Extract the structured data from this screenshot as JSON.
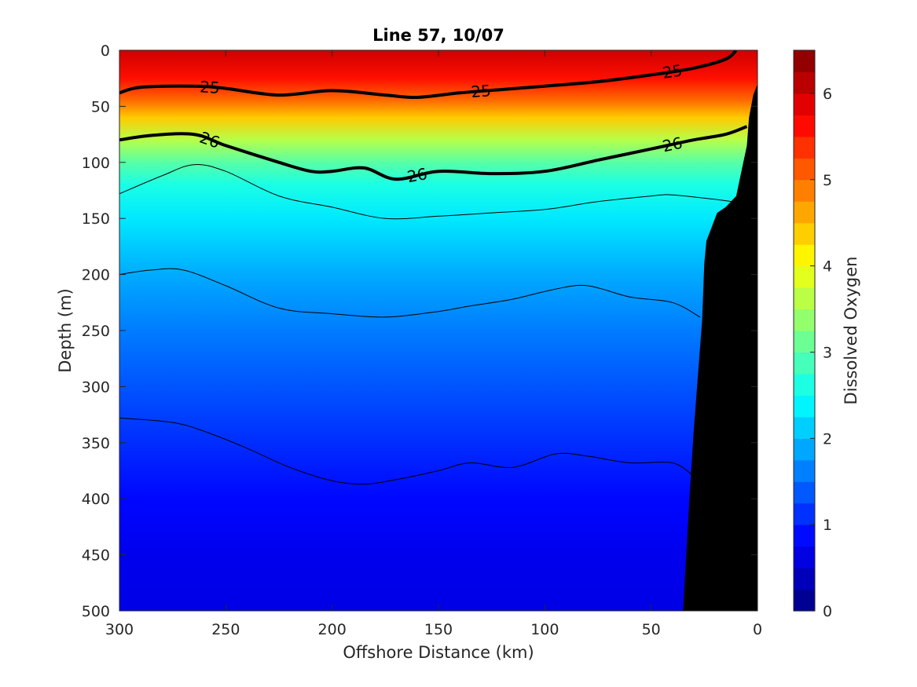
{
  "chart_data": {
    "type": "heatmap",
    "subtype": "filled-contour-section",
    "title": "Line 57, 10/07",
    "xlabel": "Offshore Distance (km)",
    "ylabel": "Depth (m)",
    "xlim": [
      300,
      0
    ],
    "x_reversed": true,
    "ylim": [
      0,
      500
    ],
    "y_reversed": true,
    "xticks": [
      "300",
      "250",
      "200",
      "150",
      "100",
      "50",
      "0"
    ],
    "yticks": [
      "0",
      "50",
      "100",
      "150",
      "200",
      "250",
      "300",
      "350",
      "400",
      "450",
      "500"
    ],
    "colorbar": {
      "label": "Dissolved Oxygen",
      "range": [
        0,
        6.5
      ],
      "ticks": [
        "0",
        "1",
        "2",
        "3",
        "4",
        "5",
        "6"
      ],
      "colormap": "jet"
    },
    "oxygen_profile_by_depth": {
      "depth": [
        0,
        25,
        45,
        60,
        80,
        100,
        120,
        150,
        200,
        250,
        300,
        350,
        400,
        450,
        500
      ],
      "oxygen": [
        6.0,
        5.6,
        5.0,
        4.4,
        3.6,
        3.0,
        2.6,
        2.3,
        1.9,
        1.6,
        1.35,
        1.1,
        0.85,
        0.7,
        0.65
      ]
    },
    "density_contours": [
      {
        "label": "25",
        "emphasized": true,
        "x": [
          300,
          290,
          265,
          250,
          225,
          200,
          175,
          160,
          140,
          120,
          100,
          75,
          50,
          30,
          15,
          10
        ],
        "depth": [
          38,
          33,
          32,
          34,
          40,
          36,
          40,
          42,
          38,
          35,
          32,
          28,
          22,
          16,
          8,
          0
        ]
      },
      {
        "label": "26",
        "emphasized": true,
        "x": [
          300,
          285,
          265,
          250,
          225,
          210,
          200,
          185,
          170,
          150,
          125,
          100,
          75,
          50,
          30,
          15,
          5
        ],
        "depth": [
          80,
          76,
          75,
          85,
          100,
          108,
          108,
          105,
          115,
          108,
          110,
          108,
          98,
          88,
          80,
          75,
          68
        ]
      },
      {
        "label": "",
        "emphasized": false,
        "x": [
          300,
          280,
          265,
          250,
          225,
          200,
          175,
          150,
          125,
          100,
          75,
          50,
          40,
          20,
          12
        ],
        "depth": [
          128,
          112,
          102,
          108,
          130,
          140,
          150,
          148,
          145,
          142,
          135,
          130,
          129,
          133,
          135
        ]
      },
      {
        "label": "",
        "emphasized": false,
        "x": [
          300,
          285,
          270,
          250,
          225,
          200,
          175,
          150,
          135,
          115,
          95,
          80,
          60,
          40,
          27
        ],
        "depth": [
          200,
          196,
          196,
          210,
          230,
          235,
          238,
          233,
          228,
          222,
          213,
          210,
          220,
          225,
          238
        ]
      },
      {
        "label": "",
        "emphasized": false,
        "x": [
          300,
          275,
          260,
          240,
          220,
          200,
          185,
          170,
          150,
          135,
          115,
          95,
          80,
          60,
          40,
          30
        ],
        "depth": [
          328,
          332,
          340,
          355,
          372,
          384,
          387,
          383,
          375,
          368,
          372,
          360,
          362,
          368,
          368,
          380
        ]
      }
    ],
    "seafloor": {
      "x": [
        35,
        32,
        30,
        26,
        25,
        24,
        22,
        20,
        19,
        15,
        10,
        5,
        4,
        2,
        0
      ],
      "depth": [
        500,
        400,
        340,
        240,
        190,
        170,
        160,
        150,
        145,
        140,
        130,
        85,
        60,
        40,
        30
      ]
    },
    "colors": {
      "seafloor": "#000000",
      "contour": "#000000",
      "text": "#262626"
    }
  }
}
